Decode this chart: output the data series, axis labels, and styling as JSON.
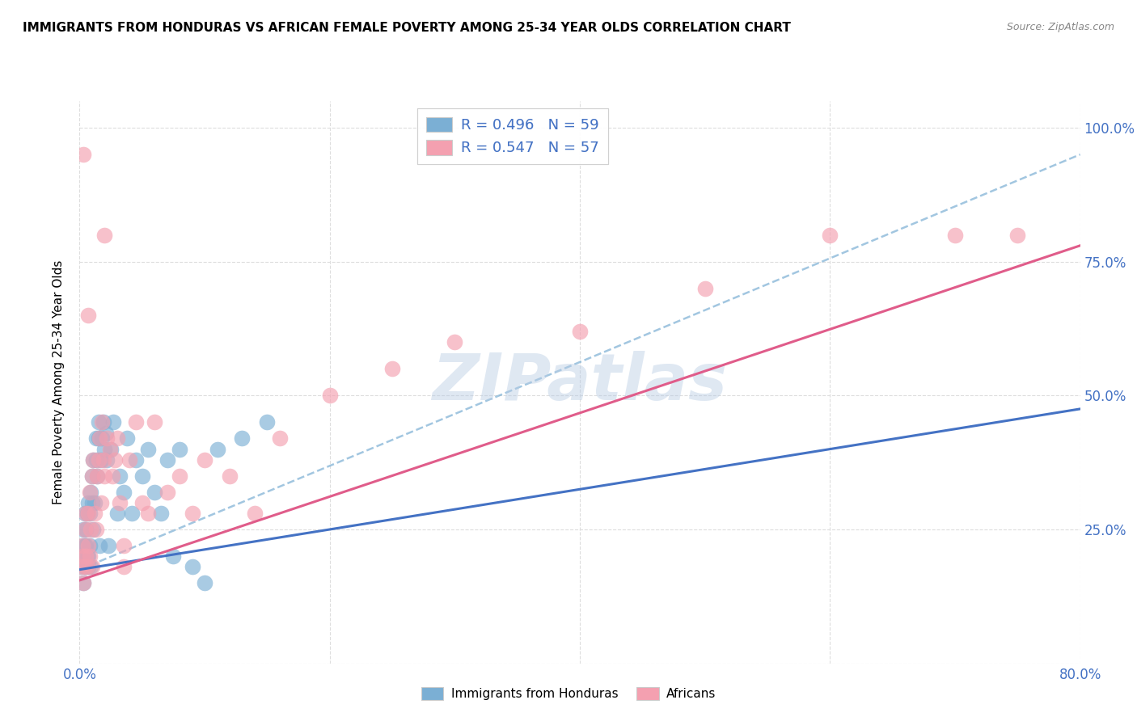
{
  "title": "IMMIGRANTS FROM HONDURAS VS AFRICAN FEMALE POVERTY AMONG 25-34 YEAR OLDS CORRELATION CHART",
  "source": "Source: ZipAtlas.com",
  "ylabel": "Female Poverty Among 25-34 Year Olds",
  "xlim": [
    0,
    0.8
  ],
  "ylim": [
    0,
    1.05
  ],
  "xticks": [
    0.0,
    0.2,
    0.4,
    0.6,
    0.8
  ],
  "xticklabels": [
    "0.0%",
    "",
    "",
    "",
    "80.0%"
  ],
  "yticks": [
    0.0,
    0.25,
    0.5,
    0.75,
    1.0
  ],
  "ytick_labels_right": [
    "",
    "25.0%",
    "50.0%",
    "75.0%",
    "100.0%"
  ],
  "legend_r1": "R = 0.496   N = 59",
  "legend_r2": "R = 0.547   N = 57",
  "color_blue": "#7bafd4",
  "color_pink": "#f4a0b0",
  "color_blue_text": "#4472c4",
  "color_pink_text": "#e05c8a",
  "color_dashed": "#7bafd4",
  "watermark": "ZIPatlas",
  "blue_points_x": [
    0.001,
    0.002,
    0.002,
    0.003,
    0.003,
    0.003,
    0.004,
    0.004,
    0.004,
    0.005,
    0.005,
    0.005,
    0.006,
    0.006,
    0.007,
    0.007,
    0.007,
    0.008,
    0.008,
    0.009,
    0.009,
    0.01,
    0.01,
    0.011,
    0.011,
    0.012,
    0.013,
    0.013,
    0.014,
    0.015,
    0.015,
    0.016,
    0.017,
    0.018,
    0.019,
    0.02,
    0.021,
    0.022,
    0.023,
    0.025,
    0.027,
    0.03,
    0.032,
    0.035,
    0.038,
    0.042,
    0.045,
    0.05,
    0.055,
    0.06,
    0.065,
    0.07,
    0.075,
    0.08,
    0.09,
    0.1,
    0.11,
    0.13,
    0.15
  ],
  "blue_points_y": [
    0.18,
    0.2,
    0.22,
    0.15,
    0.2,
    0.25,
    0.18,
    0.22,
    0.28,
    0.18,
    0.22,
    0.25,
    0.2,
    0.28,
    0.18,
    0.2,
    0.3,
    0.22,
    0.28,
    0.18,
    0.32,
    0.3,
    0.35,
    0.25,
    0.38,
    0.3,
    0.38,
    0.42,
    0.35,
    0.45,
    0.42,
    0.22,
    0.38,
    0.42,
    0.45,
    0.4,
    0.43,
    0.38,
    0.22,
    0.4,
    0.45,
    0.28,
    0.35,
    0.32,
    0.42,
    0.28,
    0.38,
    0.35,
    0.4,
    0.32,
    0.28,
    0.38,
    0.2,
    0.4,
    0.18,
    0.15,
    0.4,
    0.42,
    0.45
  ],
  "pink_points_x": [
    0.001,
    0.002,
    0.002,
    0.003,
    0.004,
    0.004,
    0.005,
    0.005,
    0.006,
    0.007,
    0.007,
    0.008,
    0.008,
    0.009,
    0.01,
    0.01,
    0.011,
    0.012,
    0.013,
    0.014,
    0.015,
    0.016,
    0.017,
    0.018,
    0.019,
    0.02,
    0.022,
    0.024,
    0.026,
    0.028,
    0.03,
    0.032,
    0.035,
    0.04,
    0.045,
    0.05,
    0.055,
    0.06,
    0.07,
    0.08,
    0.09,
    0.1,
    0.12,
    0.14,
    0.16,
    0.2,
    0.25,
    0.3,
    0.4,
    0.5,
    0.6,
    0.7,
    0.75,
    0.003,
    0.007,
    0.02,
    0.035
  ],
  "pink_points_y": [
    0.18,
    0.2,
    0.22,
    0.15,
    0.18,
    0.25,
    0.2,
    0.28,
    0.18,
    0.22,
    0.28,
    0.2,
    0.32,
    0.25,
    0.18,
    0.35,
    0.38,
    0.28,
    0.25,
    0.35,
    0.38,
    0.42,
    0.3,
    0.45,
    0.38,
    0.35,
    0.42,
    0.4,
    0.35,
    0.38,
    0.42,
    0.3,
    0.22,
    0.38,
    0.45,
    0.3,
    0.28,
    0.45,
    0.32,
    0.35,
    0.28,
    0.38,
    0.35,
    0.28,
    0.42,
    0.5,
    0.55,
    0.6,
    0.62,
    0.7,
    0.8,
    0.8,
    0.8,
    0.95,
    0.65,
    0.8,
    0.18
  ],
  "blue_trend_x": [
    0.0,
    0.8
  ],
  "blue_trend_y": [
    0.175,
    0.475
  ],
  "pink_trend_x": [
    0.0,
    0.8
  ],
  "pink_trend_y": [
    0.155,
    0.78
  ],
  "gray_trend_x": [
    0.0,
    0.8
  ],
  "gray_trend_y": [
    0.175,
    0.95
  ]
}
